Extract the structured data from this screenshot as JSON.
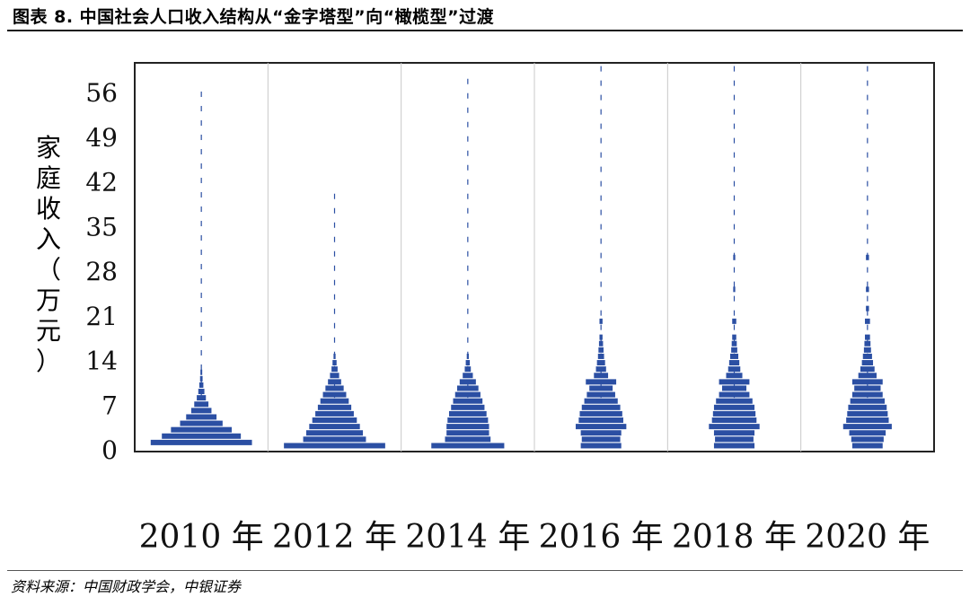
{
  "header": {
    "title": "图表 8. 中国社会人口收入结构从“金字塔型”向“橄榄型”过渡"
  },
  "footer": {
    "source": "资料来源：中国财政学会，中银证券"
  },
  "colors": {
    "bar": "#2b4fa3",
    "axis": "#222222",
    "divider": "#c8c8c8"
  },
  "chart_data": {
    "type": "bar",
    "orientation": "horizontal-distribution-panels",
    "ylabel": "家庭收入（万元）",
    "yticks": [
      0,
      7,
      14,
      21,
      28,
      35,
      42,
      49,
      56
    ],
    "ylim": [
      0,
      60
    ],
    "grid": false,
    "panels": [
      {
        "label": "2010 年",
        "distribution": [
          [
            1,
            1.0
          ],
          [
            2,
            0.78
          ],
          [
            3,
            0.6
          ],
          [
            4,
            0.42
          ],
          [
            5,
            0.3
          ],
          [
            6,
            0.2
          ],
          [
            7,
            0.14
          ],
          [
            8,
            0.09
          ],
          [
            9,
            0.06
          ],
          [
            10,
            0.04
          ],
          [
            11,
            0.025
          ],
          [
            12,
            0.015
          ]
        ],
        "tail_max": 56
      },
      {
        "label": "2012 年",
        "distribution": [
          [
            0.5,
            1.0
          ],
          [
            1.5,
            0.62
          ],
          [
            2.5,
            0.56
          ],
          [
            3.5,
            0.5
          ],
          [
            4.5,
            0.44
          ],
          [
            5.5,
            0.38
          ],
          [
            6.5,
            0.33
          ],
          [
            7.5,
            0.28
          ],
          [
            8.5,
            0.23
          ],
          [
            9.5,
            0.18
          ],
          [
            10.5,
            0.13
          ],
          [
            11.5,
            0.09
          ],
          [
            12.5,
            0.06
          ],
          [
            13.5,
            0.04
          ],
          [
            14.5,
            0.02
          ]
        ],
        "tail_max": 40
      },
      {
        "label": "2014 年",
        "distribution": [
          [
            0.5,
            0.72
          ],
          [
            1.5,
            0.45
          ],
          [
            2.5,
            0.42
          ],
          [
            3.5,
            0.42
          ],
          [
            4.5,
            0.4
          ],
          [
            5.5,
            0.37
          ],
          [
            6.5,
            0.33
          ],
          [
            7.5,
            0.29
          ],
          [
            8.5,
            0.25
          ],
          [
            9.5,
            0.21
          ],
          [
            10.5,
            0.16
          ],
          [
            11.5,
            0.1
          ],
          [
            12.5,
            0.06
          ],
          [
            13.5,
            0.04
          ],
          [
            14.5,
            0.02
          ]
        ],
        "tail_max": 58
      },
      {
        "label": "2016 年",
        "distribution": [
          [
            0.5,
            0.4
          ],
          [
            1.5,
            0.38
          ],
          [
            2.5,
            0.4
          ],
          [
            3.5,
            0.5
          ],
          [
            4.5,
            0.44
          ],
          [
            5.5,
            0.42
          ],
          [
            6.5,
            0.38
          ],
          [
            7.5,
            0.33
          ],
          [
            8.5,
            0.28
          ],
          [
            9.5,
            0.23
          ],
          [
            10.5,
            0.3
          ],
          [
            11.5,
            0.14
          ],
          [
            12.5,
            0.1
          ],
          [
            13.5,
            0.08
          ],
          [
            14.5,
            0.06
          ],
          [
            15.5,
            0.05
          ],
          [
            16.5,
            0.04
          ],
          [
            17.5,
            0.03
          ],
          [
            20,
            0.03
          ]
        ],
        "tail_max": 60
      },
      {
        "label": "2018 年",
        "distribution": [
          [
            0.5,
            0.4
          ],
          [
            1.5,
            0.38
          ],
          [
            2.5,
            0.4
          ],
          [
            3.5,
            0.5
          ],
          [
            4.5,
            0.44
          ],
          [
            5.5,
            0.42
          ],
          [
            6.5,
            0.4
          ],
          [
            7.5,
            0.36
          ],
          [
            8.5,
            0.3
          ],
          [
            9.5,
            0.24
          ],
          [
            10.5,
            0.3
          ],
          [
            11.5,
            0.16
          ],
          [
            12.5,
            0.12
          ],
          [
            13.5,
            0.1
          ],
          [
            14.5,
            0.08
          ],
          [
            15.5,
            0.06
          ],
          [
            16.5,
            0.05
          ],
          [
            17.5,
            0.04
          ],
          [
            20,
            0.04
          ],
          [
            25,
            0.02
          ],
          [
            30,
            0.02
          ]
        ],
        "tail_max": 60
      },
      {
        "label": "2020 年",
        "distribution": [
          [
            0.5,
            0.3
          ],
          [
            1.5,
            0.32
          ],
          [
            2.5,
            0.36
          ],
          [
            3.5,
            0.48
          ],
          [
            4.5,
            0.42
          ],
          [
            5.5,
            0.4
          ],
          [
            6.5,
            0.38
          ],
          [
            7.5,
            0.34
          ],
          [
            8.5,
            0.3
          ],
          [
            9.5,
            0.26
          ],
          [
            10.5,
            0.3
          ],
          [
            11.5,
            0.18
          ],
          [
            12.5,
            0.14
          ],
          [
            13.5,
            0.11
          ],
          [
            14.5,
            0.09
          ],
          [
            15.5,
            0.07
          ],
          [
            16.5,
            0.06
          ],
          [
            17.5,
            0.05
          ],
          [
            20,
            0.05
          ],
          [
            22,
            0.03
          ],
          [
            25,
            0.03
          ],
          [
            30,
            0.03
          ]
        ],
        "tail_max": 60
      }
    ]
  }
}
